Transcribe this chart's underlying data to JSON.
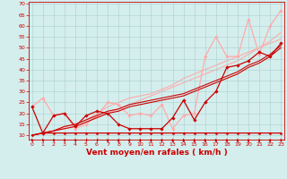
{
  "bg_color": "#d4eeed",
  "grid_color": "#aacfcf",
  "xlabel": "Vent moyen/en rafales ( km/h )",
  "xlabel_color": "#cc0000",
  "xlabel_fontsize": 6.5,
  "ylabel_ticks": [
    10,
    15,
    20,
    25,
    30,
    35,
    40,
    45,
    50,
    55,
    60,
    65,
    70
  ],
  "xticks": [
    0,
    1,
    2,
    3,
    4,
    5,
    6,
    7,
    8,
    9,
    10,
    11,
    12,
    13,
    14,
    15,
    16,
    17,
    18,
    19,
    20,
    21,
    22,
    23
  ],
  "xlim": [
    -0.3,
    23.3
  ],
  "ylim": [
    8,
    71
  ],
  "lines": [
    {
      "x": [
        0,
        1,
        2,
        3,
        4,
        5,
        6,
        7,
        8,
        9,
        10,
        11,
        12,
        13,
        14,
        15,
        16,
        17,
        18,
        19,
        20,
        21,
        22,
        23
      ],
      "y": [
        23,
        11,
        19,
        20,
        14,
        19,
        21,
        20,
        15,
        13,
        13,
        13,
        13,
        18,
        26,
        17,
        25,
        30,
        41,
        42,
        44,
        48,
        46,
        52
      ],
      "color": "#cc0000",
      "lw": 0.9,
      "marker": "D",
      "ms": 1.8,
      "zorder": 5
    },
    {
      "x": [
        0,
        1,
        2,
        3,
        4,
        5,
        6,
        7,
        8,
        9,
        10,
        11,
        12,
        13,
        14,
        15,
        16,
        17,
        18,
        19,
        20,
        21,
        22,
        23
      ],
      "y": [
        10,
        11,
        11,
        11,
        11,
        11,
        11,
        11,
        11,
        11,
        11,
        11,
        11,
        11,
        11,
        11,
        11,
        11,
        11,
        11,
        11,
        11,
        11,
        11
      ],
      "color": "#cc0000",
      "lw": 0.9,
      "marker": "D",
      "ms": 1.5,
      "zorder": 4
    },
    {
      "x": [
        0,
        1,
        2,
        3,
        4,
        5,
        6,
        7,
        8,
        9,
        10,
        11,
        12,
        13,
        14,
        15,
        16,
        17,
        18,
        19,
        20,
        21,
        22,
        23
      ],
      "y": [
        10,
        11,
        12,
        14,
        15,
        17,
        19,
        21,
        22,
        24,
        25,
        26,
        27,
        28,
        29,
        31,
        33,
        35,
        37,
        39,
        42,
        44,
        47,
        51
      ],
      "color": "#cc0000",
      "lw": 0.8,
      "marker": null,
      "ms": 0,
      "zorder": 3
    },
    {
      "x": [
        0,
        1,
        2,
        3,
        4,
        5,
        6,
        7,
        8,
        9,
        10,
        11,
        12,
        13,
        14,
        15,
        16,
        17,
        18,
        19,
        20,
        21,
        22,
        23
      ],
      "y": [
        10,
        11,
        12,
        13,
        14,
        16,
        18,
        20,
        21,
        23,
        24,
        25,
        26,
        27,
        28,
        30,
        32,
        34,
        36,
        38,
        41,
        43,
        46,
        50
      ],
      "color": "#cc0000",
      "lw": 0.8,
      "marker": null,
      "ms": 0,
      "zorder": 3
    },
    {
      "x": [
        0,
        1,
        2,
        3,
        4,
        5,
        6,
        7,
        8,
        9,
        10,
        11,
        12,
        13,
        14,
        15,
        16,
        17,
        18,
        19,
        20,
        21,
        22,
        23
      ],
      "y": [
        23,
        27,
        19,
        20,
        13,
        15,
        19,
        25,
        24,
        19,
        20,
        19,
        24,
        13,
        19,
        20,
        46,
        55,
        46,
        46,
        63,
        47,
        60,
        67
      ],
      "color": "#ffaaaa",
      "lw": 0.9,
      "marker": "D",
      "ms": 1.8,
      "zorder": 2
    },
    {
      "x": [
        0,
        1,
        2,
        3,
        4,
        5,
        6,
        7,
        8,
        9,
        10,
        11,
        12,
        13,
        14,
        15,
        16,
        17,
        18,
        19,
        20,
        21,
        22,
        23
      ],
      "y": [
        10,
        11,
        12,
        14,
        15,
        17,
        20,
        23,
        25,
        27,
        28,
        29,
        31,
        33,
        36,
        38,
        40,
        42,
        44,
        46,
        48,
        50,
        52,
        54
      ],
      "color": "#ffaaaa",
      "lw": 0.8,
      "marker": null,
      "ms": 0,
      "zorder": 1
    },
    {
      "x": [
        0,
        1,
        2,
        3,
        4,
        5,
        6,
        7,
        8,
        9,
        10,
        11,
        12,
        13,
        14,
        15,
        16,
        17,
        18,
        19,
        20,
        21,
        22,
        23
      ],
      "y": [
        10,
        11,
        12,
        13,
        14,
        16,
        18,
        20,
        22,
        24,
        26,
        28,
        30,
        32,
        34,
        36,
        38,
        40,
        42,
        44,
        47,
        50,
        53,
        57
      ],
      "color": "#ffaaaa",
      "lw": 0.8,
      "marker": null,
      "ms": 0,
      "zorder": 1
    }
  ],
  "arrow_angles": [
    225,
    225,
    225,
    225,
    225,
    210,
    210,
    270,
    270,
    270,
    270,
    270,
    270,
    270,
    270,
    270,
    270,
    270,
    270,
    270,
    270,
    270,
    270,
    225
  ]
}
